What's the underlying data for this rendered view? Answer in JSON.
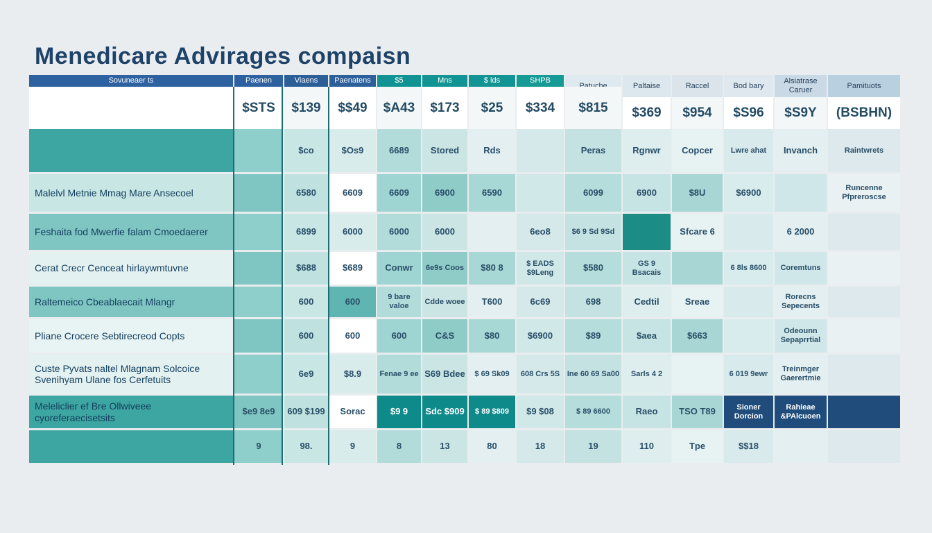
{
  "title": "Menedicare Advirages compaisn",
  "header_row": [
    "Sovuneaer ts",
    "Paenen",
    "Viaens",
    "Paenatens",
    "$5",
    "Mns",
    "$ lds",
    "SHPB",
    "Patuche",
    "Paltaise",
    "Raccel",
    "Bod bary",
    "Alsiatrase Caruer",
    "Pamituots"
  ],
  "price_row": [
    "$STS",
    "$139",
    "$$49",
    "$A43",
    "$173",
    "$25",
    "$334",
    "$815",
    "$369",
    "$954",
    "$S96",
    "$S9Y",
    "(BSBHN)"
  ],
  "row_labels": [
    "",
    "Malelvl Metnie Mmag Mare Ansecoel",
    "Feshaita fod Mwerfie falam Cmoedaerer",
    "Cerat Crecr Cenceat hirlaywmtuvne",
    "Raltemeico Cbeablaecait Mlangr",
    "Pliane Crocere Sebtirecreod Copts",
    "Custe Pyvats naltel Mlagnam Solcoice Svenihyam Ulane fos Cerfetuits",
    "Meleliclier ef Bre Ollwiveee cyoreferaecisetsits",
    ""
  ],
  "rows": [
    [
      "",
      "",
      "$co",
      "$Os9",
      "6689",
      "Stored",
      "Rds",
      "",
      "Peras",
      "Rgnwr",
      "Copcer",
      "Lwre ahat",
      "Invanch",
      "Raintwrets"
    ],
    [
      "",
      "",
      "6580",
      "6609",
      "6609",
      "6900",
      "6590",
      "",
      "6099",
      "6900",
      "$8U",
      "$6900",
      "",
      "Runcenne Pfpreroscse"
    ],
    [
      "",
      "",
      "6899",
      "6000",
      "6000",
      "6000",
      "",
      "6eo8",
      "$6 9 Sd 9Sd",
      "",
      "Sfcare 6",
      "",
      "6 2000",
      ""
    ],
    [
      "",
      "",
      "$688",
      "$689",
      "Conwr",
      "6e9s Coos",
      "$80 8",
      "$ EADS $9Leng",
      "$580",
      "GS 9 Bsacais",
      "",
      "6 8ls 8600",
      "Coremtuns",
      ""
    ],
    [
      "",
      "",
      "600",
      "600",
      "9 bare valoe",
      "Cdde woee",
      "T600",
      "6c69",
      "698",
      "Cedtil",
      "Sreae",
      "",
      "Rorecns Sepecents",
      ""
    ],
    [
      "",
      "",
      "600",
      "600",
      "600",
      "C&S",
      "$80",
      "$6900",
      "$89",
      "$aea",
      "$663",
      "",
      "Odeounn Sepaprrtial",
      ""
    ],
    [
      "",
      "",
      "6e9",
      "$8.9",
      "Fenae 9 ee",
      "S69 Bdee",
      "$ 69 Sk09",
      "608 Crs 5S",
      "Ine 60 69 Sa00",
      "Sarls 4 2",
      "",
      "6 019 9ewr",
      "Treinmger Gaerertmie",
      ""
    ],
    [
      "",
      "$e9 8e9",
      "609 $199",
      "Sorac",
      "$9 9",
      "Sdc $909",
      "$ 89 $809",
      "$9 $08",
      "$ 89 6600",
      "Raeo",
      "TSO T89",
      "Sioner Dorcion",
      "Rahieae &PAlcuoen",
      ""
    ],
    [
      "",
      "9",
      "98.",
      "9",
      "8",
      "13",
      "80",
      "18",
      "19",
      "110",
      "Tpe",
      "$$18",
      "",
      ""
    ]
  ],
  "colors": {
    "teal_dark": "#0f8a8a",
    "teal_light": "#7cc3c1",
    "navy": "#1f4c7a",
    "title": "#1f4368"
  }
}
